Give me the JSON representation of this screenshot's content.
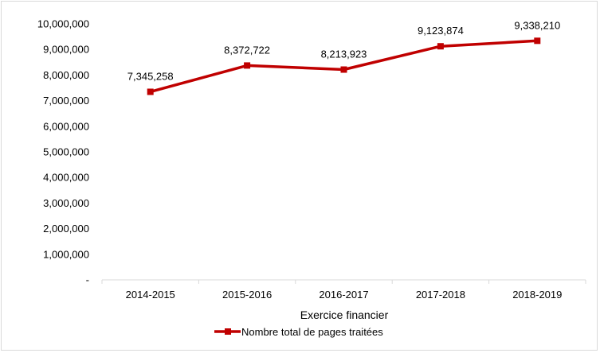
{
  "chart_data": {
    "type": "line",
    "title": "",
    "xlabel": "Exercice financier",
    "ylabel": "",
    "categories": [
      "2014-2015",
      "2015-2016",
      "2016-2017",
      "2017-2018",
      "2018-2019"
    ],
    "series": [
      {
        "name": "Nombre total de pages traitées",
        "values": [
          7345258,
          8372722,
          8213923,
          9123874,
          9338210
        ],
        "data_labels": [
          "7,345,258",
          "8,372,722",
          "8,213,923",
          "9,123,874",
          "9,338,210"
        ],
        "color": "#c00000",
        "marker": "square"
      }
    ],
    "ylim": [
      0,
      10000000
    ],
    "yticks": [
      0,
      1000000,
      2000000,
      3000000,
      4000000,
      5000000,
      6000000,
      7000000,
      8000000,
      9000000,
      10000000
    ],
    "ytick_labels": [
      "-",
      "1,000,000",
      "2,000,000",
      "3,000,000",
      "4,000,000",
      "5,000,000",
      "6,000,000",
      "7,000,000",
      "8,000,000",
      "9,000,000",
      "10,000,000"
    ],
    "grid": false,
    "legend": "bottom",
    "axis_color": "#d9d9d9"
  }
}
